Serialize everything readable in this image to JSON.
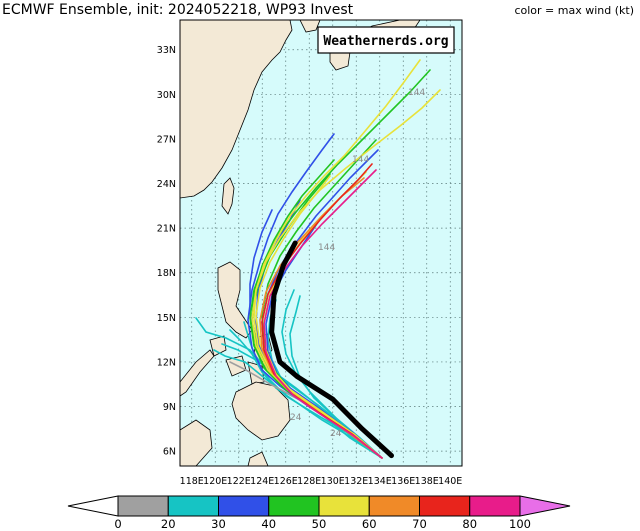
{
  "header": {
    "title": "ECMWF Ensemble, init: 2024052218, WP93 Invest",
    "subtitle": "color = max wind (kt)"
  },
  "watermark": "Weathernerds.org",
  "map": {
    "lat_labels": [
      "33N",
      "30N",
      "27N",
      "24N",
      "21N",
      "18N",
      "15N",
      "12N",
      "9N",
      "6N"
    ],
    "lon_labels": [
      "118E",
      "120E",
      "122E",
      "124E",
      "126E",
      "128E",
      "130E",
      "132E",
      "134E",
      "136E",
      "138E",
      "140E"
    ],
    "lat_range": [
      5,
      35
    ],
    "lon_range": [
      117,
      141
    ],
    "forecast_hour_labels": [
      "144",
      "144",
      "144",
      "24",
      "24"
    ],
    "colors": {
      "ocean": "#d6fbfb",
      "land": "#f3e9d6",
      "grid": "#5a7a7a"
    }
  },
  "colorbar": {
    "ticks": [
      "0",
      "20",
      "30",
      "40",
      "50",
      "60",
      "70",
      "80",
      "100"
    ],
    "colors": [
      "#ffffff",
      "#a0a0a0",
      "#16c4c4",
      "#3050e8",
      "#21c421",
      "#e8e23a",
      "#f08a28",
      "#e8241c",
      "#e81c8a",
      "#e86ee8"
    ]
  },
  "chart_data": {
    "type": "map",
    "tracks_summary": "ensemble member tracks colored by max wind (kt)",
    "ensemble_mean_track": [
      {
        "lat": 5.7,
        "lon": 135.0
      },
      {
        "lat": 7.5,
        "lon": 132.5
      },
      {
        "lat": 9.5,
        "lon": 130.0
      },
      {
        "lat": 11.0,
        "lon": 127.0
      },
      {
        "lat": 12.0,
        "lon": 125.5
      },
      {
        "lat": 14.0,
        "lon": 124.8
      },
      {
        "lat": 16.5,
        "lon": 125.0
      },
      {
        "lat": 18.5,
        "lon": 125.8
      },
      {
        "lat": 20.0,
        "lon": 126.8
      }
    ]
  }
}
